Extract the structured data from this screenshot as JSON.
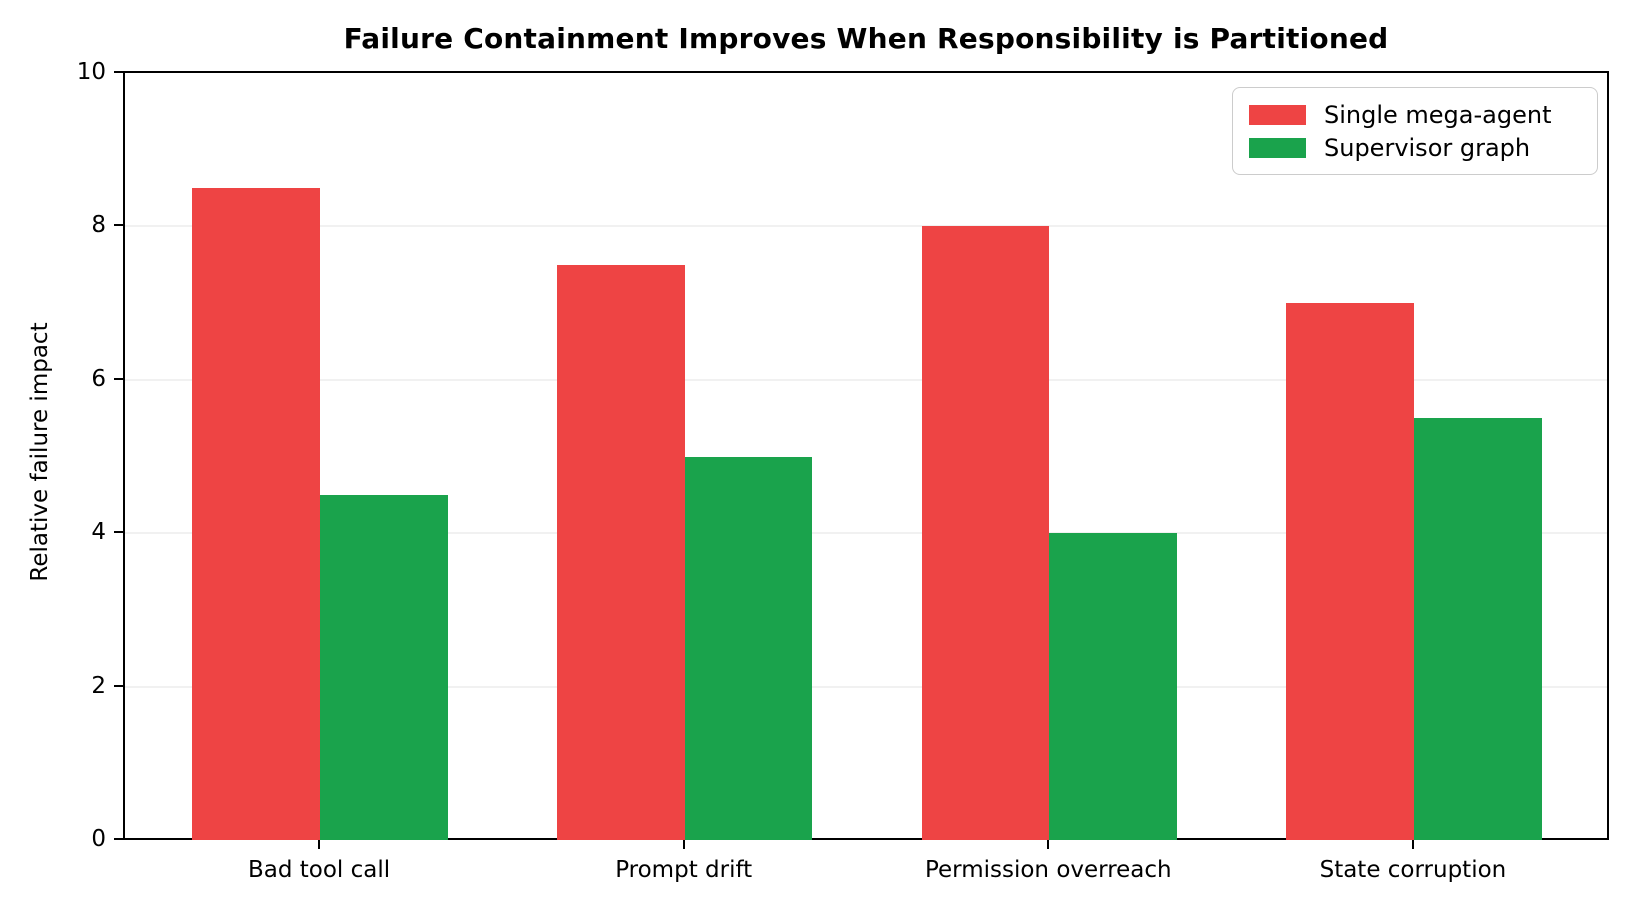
{
  "chart_data": {
    "type": "bar",
    "title": "Failure Containment Improves When Responsibility is Partitioned",
    "xlabel": "",
    "ylabel": "Relative failure impact",
    "categories": [
      "Bad tool call",
      "Prompt drift",
      "Permission overreach",
      "State corruption"
    ],
    "series": [
      {
        "name": "Single mega-agent",
        "color": "#ee4444",
        "values": [
          8.5,
          7.5,
          8.0,
          7.0
        ]
      },
      {
        "name": "Supervisor graph",
        "color": "#1aa34c",
        "values": [
          4.5,
          5.0,
          4.0,
          5.5
        ]
      }
    ],
    "ylim": [
      0,
      10
    ],
    "yticks": [
      0,
      2,
      4,
      6,
      8,
      10
    ],
    "grid": "horizontal",
    "gridline_color": "#f1f1f1",
    "legend_position": "upper right",
    "bar_width": 0.35
  }
}
